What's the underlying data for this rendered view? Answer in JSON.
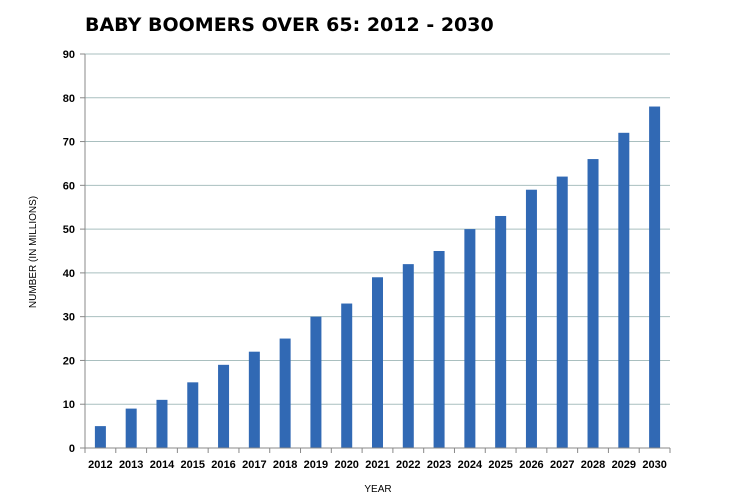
{
  "chart_data": {
    "type": "bar",
    "title": "BABY BOOMERS OVER 65: 2012 - 2030",
    "xlabel": "YEAR",
    "ylabel": "NUMBER (IN MILLIONS)",
    "ylim": [
      0,
      90
    ],
    "yticks": [
      "0",
      "10",
      "20",
      "30",
      "40",
      "50",
      "60",
      "70",
      "80",
      "90"
    ],
    "grid": true,
    "categories": [
      "2012",
      "2013",
      "2014",
      "2015",
      "2016",
      "2017",
      "2018",
      "2019",
      "2020",
      "2021",
      "2022",
      "2023",
      "2024",
      "2025",
      "2026",
      "2027",
      "2028",
      "2029",
      "2030"
    ],
    "values": [
      5,
      9,
      11,
      15,
      19,
      22,
      25,
      30,
      33,
      39,
      42,
      45,
      50,
      53,
      59,
      62,
      66,
      72,
      78
    ],
    "bar_color": "#3169b4",
    "grid_color": "#a9bfbf"
  }
}
